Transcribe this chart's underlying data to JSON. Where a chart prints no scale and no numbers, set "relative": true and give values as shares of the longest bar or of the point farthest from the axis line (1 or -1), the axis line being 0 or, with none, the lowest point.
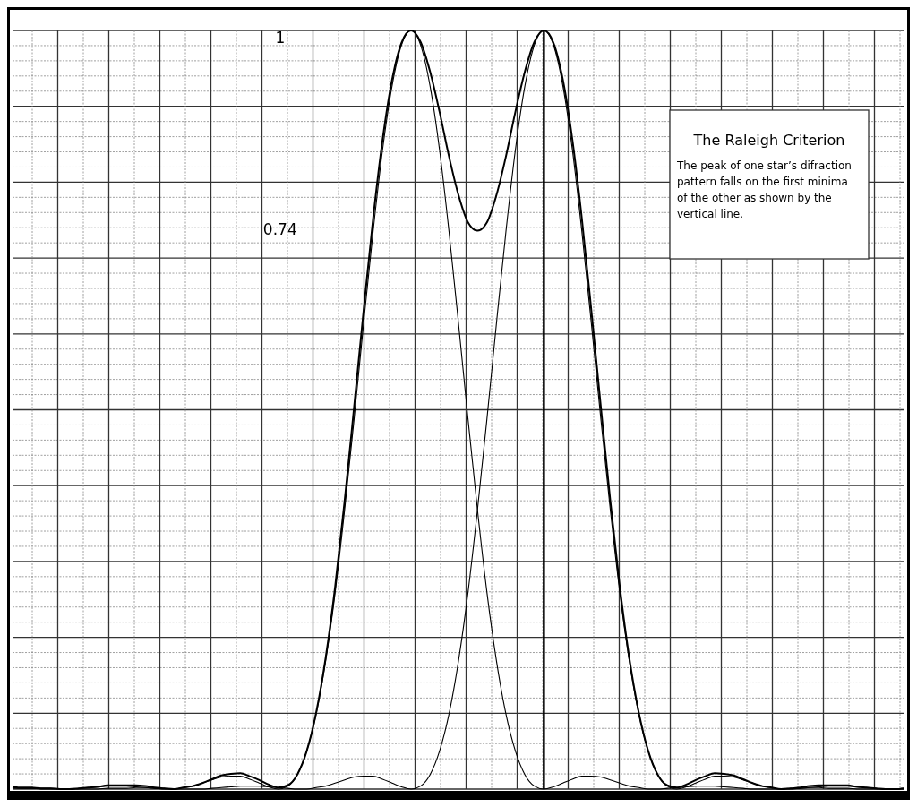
{
  "chart_data": {
    "type": "line",
    "title": "The Raleigh Criterion",
    "relative": true,
    "grid": true,
    "line_style": "solid",
    "categories": [
      null,
      null,
      null,
      null,
      null,
      null,
      null,
      null,
      null,
      null,
      null,
      null,
      null,
      null,
      null,
      null,
      null,
      null,
      null,
      null,
      null,
      null,
      null,
      null,
      null,
      null,
      null,
      null,
      null,
      null,
      null,
      null,
      null,
      null,
      null,
      null,
      null,
      null,
      null,
      null,
      null,
      null,
      null,
      null,
      null,
      null,
      null,
      null,
      null,
      null,
      null,
      null,
      null,
      null,
      null,
      null,
      null,
      null,
      null,
      null,
      null,
      null,
      null,
      null,
      null,
      null,
      null,
      null,
      null,
      null,
      null,
      null,
      null,
      null,
      null,
      null,
      null,
      null,
      null,
      null,
      null,
      null,
      null,
      null,
      null,
      null,
      null,
      null,
      null,
      null,
      null,
      null,
      null,
      null,
      null
    ],
    "series": [
      {
        "color": "#000000",
        "values": [
          0.002,
          0.001,
          0.001,
          0,
          0,
          0,
          0,
          0.001,
          0.002,
          0.003,
          0.004,
          0.004,
          0.004,
          0.003,
          0.002,
          0.001,
          0,
          0,
          0.002,
          0.004,
          0.008,
          0.012,
          0.016,
          0.017,
          0.017,
          0.013,
          0.008,
          0.003,
          0,
          0.004,
          0.019,
          0.05,
          0.099,
          0.169,
          0.259,
          0.368,
          0.488,
          0.614,
          0.735,
          0.843,
          0.927,
          0.981,
          1,
          0.981,
          0.927,
          0.843,
          0.735,
          0.614,
          0.488,
          0.368,
          0.259,
          0.169,
          0.099,
          0.05,
          0.019,
          0.004,
          0,
          0.003,
          0.008,
          0.013,
          0.017,
          0.017,
          0.016,
          0.012,
          0.008,
          0.004,
          0.002,
          0,
          0,
          0.001,
          0.002,
          0.003,
          0.004,
          0.004,
          0.004,
          0.003,
          0.002,
          0.001,
          0,
          0,
          0,
          0,
          0.001,
          0.001,
          0.002,
          0.002,
          0.001,
          0.001,
          0.001,
          0,
          0,
          0,
          0,
          0,
          0.001
        ]
      },
      {
        "color": "#000000",
        "values": [
          0.001,
          0.001,
          0.001,
          0.001,
          0.001,
          0,
          0,
          0,
          0,
          0,
          0.001,
          0.001,
          0.001,
          0.002,
          0.002,
          0.001,
          0.001,
          0,
          0,
          0,
          0,
          0.001,
          0.002,
          0.003,
          0.004,
          0.004,
          0.004,
          0.003,
          0.002,
          0.001,
          0,
          0,
          0.002,
          0.004,
          0.008,
          0.012,
          0.016,
          0.017,
          0.017,
          0.013,
          0.008,
          0.003,
          0,
          0.004,
          0.019,
          0.05,
          0.099,
          0.169,
          0.259,
          0.368,
          0.488,
          0.614,
          0.735,
          0.843,
          0.927,
          0.981,
          1,
          0.981,
          0.927,
          0.843,
          0.735,
          0.614,
          0.488,
          0.368,
          0.259,
          0.169,
          0.099,
          0.05,
          0.019,
          0.004,
          0,
          0.003,
          0.008,
          0.013,
          0.017,
          0.017,
          0.016,
          0.012,
          0.008,
          0.004,
          0.002,
          0,
          0,
          0.001,
          0.002,
          0.003,
          0.004,
          0.004,
          0.004,
          0.003,
          0.002,
          0.001,
          0,
          0,
          0
        ]
      },
      {
        "color": "#000000",
        "values": [
          0.003,
          0.002,
          0.002,
          0.001,
          0.001,
          0,
          0,
          0.001,
          0.002,
          0.003,
          0.005,
          0.005,
          0.005,
          0.005,
          0.004,
          0.002,
          0.001,
          0,
          0.002,
          0.004,
          0.008,
          0.013,
          0.018,
          0.02,
          0.021,
          0.017,
          0.012,
          0.006,
          0.002,
          0.005,
          0.019,
          0.05,
          0.101,
          0.173,
          0.267,
          0.38,
          0.504,
          0.631,
          0.752,
          0.856,
          0.935,
          0.984,
          1,
          0.985,
          0.946,
          0.893,
          0.834,
          0.783,
          0.747,
          0.736,
          0.747,
          0.783,
          0.834,
          0.893,
          0.946,
          0.985,
          1,
          0.984,
          0.935,
          0.856,
          0.752,
          0.631,
          0.504,
          0.38,
          0.267,
          0.173,
          0.101,
          0.05,
          0.019,
          0.005,
          0.002,
          0.006,
          0.012,
          0.017,
          0.021,
          0.02,
          0.018,
          0.013,
          0.008,
          0.004,
          0.002,
          0,
          0.001,
          0.002,
          0.004,
          0.005,
          0.005,
          0.005,
          0.005,
          0.003,
          0.002,
          0.001,
          0,
          0,
          0.001
        ]
      }
    ],
    "annotations": [
      "1",
      "0.74",
      "The peak of one star’s difraction pattern falls on the first minima of the other as shown by the vertical line."
    ]
  }
}
